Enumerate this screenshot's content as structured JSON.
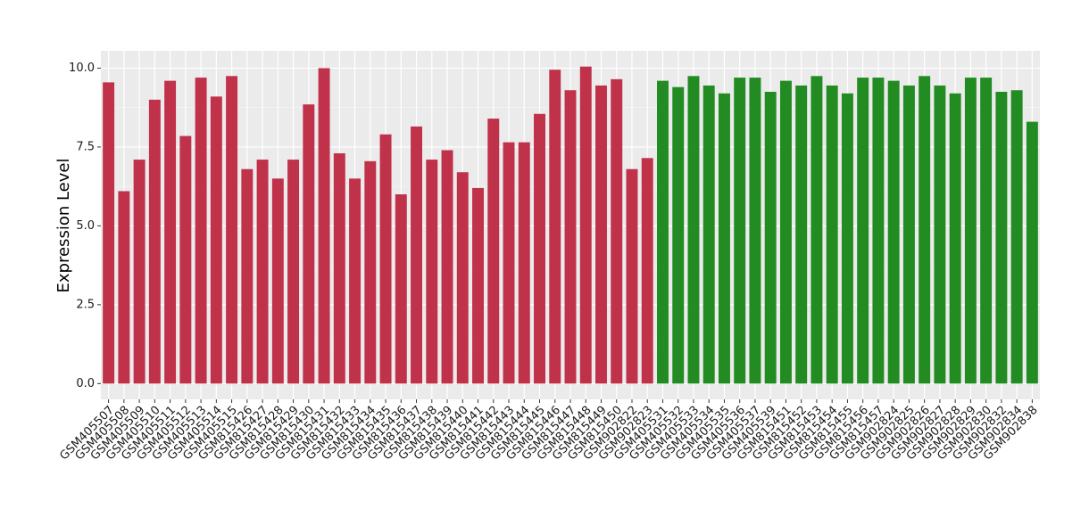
{
  "chart_data": {
    "type": "bar",
    "y_label": "Expression Level",
    "categories": [
      "GSM405507",
      "GSM405508",
      "GSM405509",
      "GSM405510",
      "GSM405511",
      "GSM405512",
      "GSM405513",
      "GSM405514",
      "GSM405515",
      "GSM815426",
      "GSM815427",
      "GSM815428",
      "GSM815429",
      "GSM815430",
      "GSM815431",
      "GSM815432",
      "GSM815433",
      "GSM815434",
      "GSM815435",
      "GSM815436",
      "GSM815437",
      "GSM815438",
      "GSM815439",
      "GSM815440",
      "GSM815441",
      "GSM815442",
      "GSM815443",
      "GSM815444",
      "GSM815445",
      "GSM815446",
      "GSM815447",
      "GSM815448",
      "GSM815449",
      "GSM815450",
      "GSM902822",
      "GSM902823",
      "GSM405531",
      "GSM405532",
      "GSM405533",
      "GSM405534",
      "GSM405535",
      "GSM405536",
      "GSM405537",
      "GSM405539",
      "GSM815451",
      "GSM815452",
      "GSM815453",
      "GSM815454",
      "GSM815455",
      "GSM815456",
      "GSM815457",
      "GSM902824",
      "GSM902825",
      "GSM902826",
      "GSM902827",
      "GSM902828",
      "GSM902829",
      "GSM902830",
      "GSM902832",
      "GSM902834",
      "GSM902838"
    ],
    "values": [
      9.55,
      6.1,
      7.1,
      9.0,
      9.6,
      7.85,
      9.7,
      9.1,
      9.75,
      6.8,
      7.1,
      6.5,
      7.1,
      8.85,
      10.0,
      7.3,
      6.5,
      7.05,
      7.9,
      6.0,
      8.15,
      7.1,
      7.4,
      6.7,
      6.2,
      8.4,
      7.65,
      7.65,
      8.55,
      9.95,
      9.3,
      10.05,
      9.45,
      9.65,
      6.8,
      7.15,
      9.6,
      9.4,
      9.75,
      9.45,
      9.2,
      9.7,
      9.7,
      9.25,
      9.6,
      9.45,
      9.75,
      9.45,
      9.2,
      9.7,
      9.7,
      9.6,
      9.45,
      9.75,
      9.45,
      9.2,
      9.7,
      9.7,
      9.25,
      9.3,
      8.3
    ],
    "colors": [
      "#c0314a",
      "#c0314a",
      "#c0314a",
      "#c0314a",
      "#c0314a",
      "#c0314a",
      "#c0314a",
      "#c0314a",
      "#c0314a",
      "#c0314a",
      "#c0314a",
      "#c0314a",
      "#c0314a",
      "#c0314a",
      "#c0314a",
      "#c0314a",
      "#c0314a",
      "#c0314a",
      "#c0314a",
      "#c0314a",
      "#c0314a",
      "#c0314a",
      "#c0314a",
      "#c0314a",
      "#c0314a",
      "#c0314a",
      "#c0314a",
      "#c0314a",
      "#c0314a",
      "#c0314a",
      "#c0314a",
      "#c0314a",
      "#c0314a",
      "#c0314a",
      "#c0314a",
      "#c0314a",
      "#228b22",
      "#228b22",
      "#228b22",
      "#228b22",
      "#228b22",
      "#228b22",
      "#228b22",
      "#228b22",
      "#228b22",
      "#228b22",
      "#228b22",
      "#228b22",
      "#228b22",
      "#228b22",
      "#228b22",
      "#228b22",
      "#228b22",
      "#228b22",
      "#228b22",
      "#228b22",
      "#228b22",
      "#228b22",
      "#228b22",
      "#228b22",
      "#228b22"
    ],
    "ylim": [
      -0.5,
      10.55
    ],
    "yticks": [
      {
        "value": 0,
        "label": "0.0"
      },
      2.5,
      {
        "value": 5,
        "label": "5.0"
      },
      7.5,
      {
        "value": 10,
        "label": "10.0"
      }
    ],
    "grid": true
  }
}
